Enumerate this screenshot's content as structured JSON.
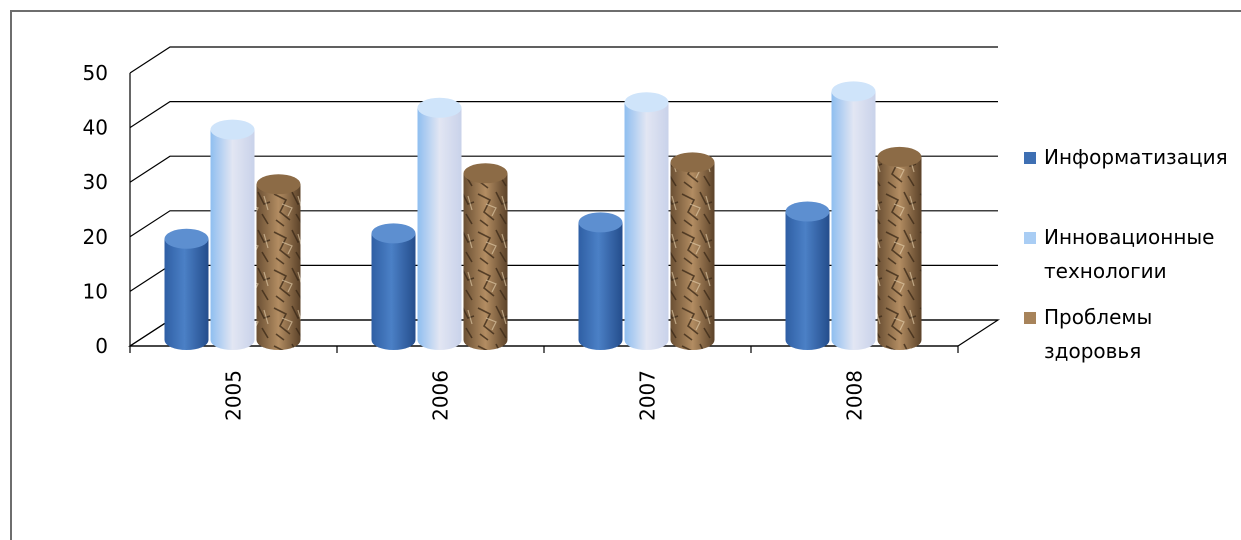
{
  "chart_data": {
    "type": "bar",
    "style": "3d-cylinder-clustered",
    "categories": [
      "2005",
      "2006",
      "2007",
      "2008"
    ],
    "series": [
      {
        "name": "Информатизация",
        "values": [
          20,
          21,
          23,
          25
        ],
        "color": "#3e6fb3"
      },
      {
        "name": "Инновационные технологии",
        "name_lines": [
          "Инновационные",
          "технологии"
        ],
        "values": [
          40,
          44,
          45,
          47
        ],
        "color": "#a9cdf4"
      },
      {
        "name": "Проблемы здоровья",
        "name_lines": [
          "Проблемы",
          "здоровья"
        ],
        "values": [
          30,
          32,
          34,
          35
        ],
        "color": "#a7835a"
      }
    ],
    "ylim": [
      0,
      50
    ],
    "yticks": [
      "0",
      "10",
      "20",
      "30",
      "40",
      "50"
    ],
    "grid": true,
    "legend_position": "right",
    "title": "",
    "xlabel": "",
    "ylabel": ""
  }
}
